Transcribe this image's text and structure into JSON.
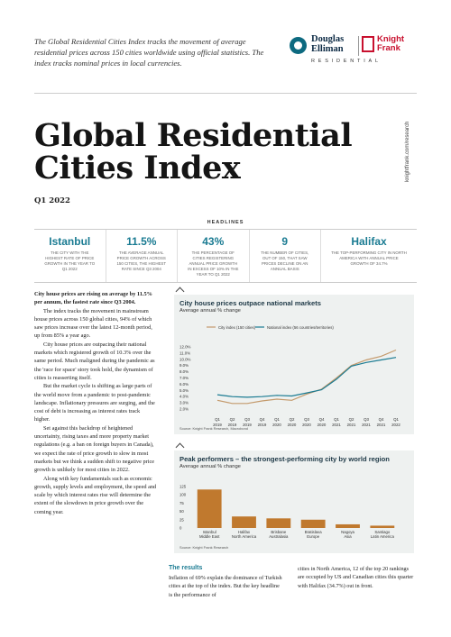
{
  "intro": "The Global Residential Cities Index tracks the movement of average residential prices across 150 cities worldwide using official statistics. The index tracks nominal prices in local currencies.",
  "logo": {
    "brand1_line1": "Douglas",
    "brand1_line2": "Elliman",
    "brand2_line1": "Knight",
    "brand2_line2": "Frank",
    "residential": "RESIDENTIAL"
  },
  "side_url": "knightfrank.com/research",
  "title_line1": "Global Residential",
  "title_line2": "Cities Index",
  "quarter": "Q1 2022",
  "headlines_label": "HEADLINES",
  "headlines": [
    {
      "big": "Istanbul",
      "small": "The city with the highest rate of price growth in the year to Q1 2022"
    },
    {
      "big": "11.5%",
      "small": "The average annual price growth across 150 cities, the highest rate since Q3 2004"
    },
    {
      "big": "43%",
      "small": "The percentage of cities registering annual price growth in excess of 10% in the year to Q1 2022"
    },
    {
      "big": "9",
      "small": "The number of cities, out of 150, that saw prices decline on an annual basis"
    },
    {
      "big": "Halifax",
      "small": "The top-performing city in North America with annual price growth of 34.7%"
    }
  ],
  "body": {
    "lead": "City house prices are rising on average by 11.5% per annum, the fastest rate since Q3 2004.",
    "paragraphs": [
      "The index tracks the movement in mainstream house prices across 150 global cities, 94% of which saw prices increase over the latest 12-month period, up from 85% a year ago.",
      "City house prices are outpacing their national markets which registered growth of 10.3% over the same period. Much maligned during the pandemic as the 'race for space' story took hold, the dynamism of cities is reasserting itself.",
      "But the market cycle is shifting as large parts of the world move from a pandemic to post-pandemic landscape. Inflationary pressures are surging, and the cost of debt is increasing as interest rates track higher.",
      "Set against this backdrop of heightened uncertainty, rising taxes and more property market regulations (e.g. a ban on foreign buyers in Canada), we expect the rate of price growth to slow in most markets but we think a sudden shift to negative price growth is unlikely for most cities in 2022.",
      "Along with key fundamentals such as economic growth, supply levels and employment, the speed and scale by which interest rates rise will determine the extent of the slowdown in price growth over the coming year."
    ]
  },
  "chart_data": [
    {
      "type": "line",
      "title": "City house prices outpace national markets",
      "subtitle": "Average annual % change",
      "source": "Source: Knight Frank Research, Macrobond",
      "x": [
        "Q1 2019",
        "Q2 2019",
        "Q3 2019",
        "Q4 2019",
        "Q1 2020",
        "Q2 2020",
        "Q3 2020",
        "Q4 2020",
        "Q1 2021",
        "Q2 2021",
        "Q3 2021",
        "Q4 2021",
        "Q1 2022"
      ],
      "x_ticks_line1": [
        "Q1",
        "Q2",
        "Q3",
        "Q4",
        "Q1",
        "Q2",
        "Q3",
        "Q4",
        "Q1",
        "Q2",
        "Q3",
        "Q4",
        "Q1"
      ],
      "x_ticks_line2": [
        "2019",
        "2019",
        "2019",
        "2019",
        "2020",
        "2020",
        "2020",
        "2020",
        "2021",
        "2021",
        "2021",
        "2021",
        "2022"
      ],
      "y_ticks": [
        "12.0%",
        "11.0%",
        "10.0%",
        "9.0%",
        "8.0%",
        "7.0%",
        "6.0%",
        "5.0%",
        "4.0%",
        "3.0%",
        "2.0%"
      ],
      "ylim": [
        2,
        12
      ],
      "series": [
        {
          "name": "City index (150 cities)",
          "color": "#c49a6c",
          "values": [
            3.4,
            2.9,
            2.9,
            3.3,
            3.6,
            3.4,
            4.4,
            5.2,
            7.0,
            9.0,
            9.9,
            10.5,
            11.5
          ]
        },
        {
          "name": "National index (56 countries/territories)",
          "color": "#1a7b92",
          "values": [
            4.3,
            4.0,
            3.9,
            4.0,
            4.2,
            4.1,
            4.6,
            5.1,
            6.8,
            8.9,
            9.5,
            9.9,
            10.3
          ]
        }
      ]
    },
    {
      "type": "bar",
      "title": "Peak performers – the strongest-performing city by world region",
      "subtitle": "Average annual % change",
      "source": "Source: Knight Frank Research",
      "categories": [
        "Istanbul",
        "Halifax",
        "Brisbane",
        "Bratislava",
        "Nagoya",
        "Santiago"
      ],
      "regions": [
        "Middle East",
        "North America",
        "Australasia",
        "Europe",
        "Asia",
        "Latin America"
      ],
      "values": [
        116,
        34.7,
        29,
        25,
        11,
        7
      ],
      "y_ticks": [
        "125",
        "100",
        "75",
        "50",
        "25",
        "0"
      ],
      "ylim": [
        0,
        125
      ],
      "color": "#c0792e"
    }
  ],
  "results": {
    "heading": "The results",
    "col1": "Inflation of 69% explain the dominance of Turkish cities at the top of the index. But the key headline is the performance of",
    "col2": "cities in North America, 12 of the top 20 rankings are occupied by US and Canadian cities this quarter with Halifax (34.7%) out in front."
  }
}
